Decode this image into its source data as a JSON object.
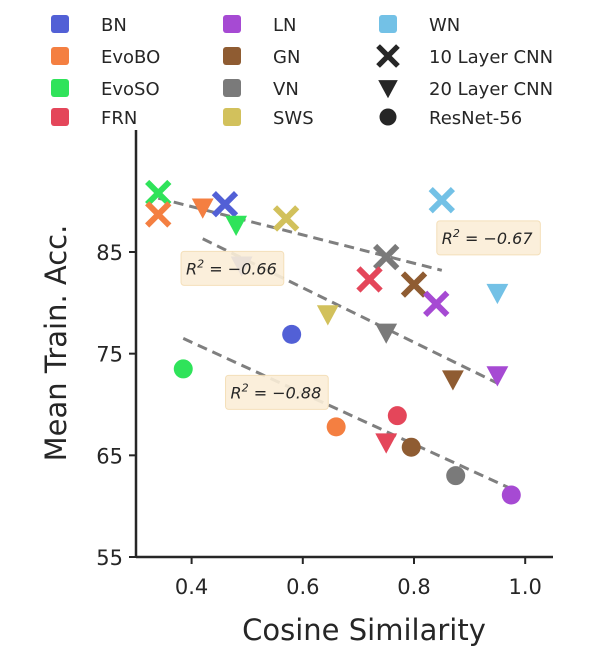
{
  "chart_data": {
    "type": "scatter",
    "xlabel": "Cosine Similarity",
    "ylabel": "Mean Train. Acc.",
    "xlim": [
      0.3,
      1.05
    ],
    "ylim": [
      55,
      97
    ],
    "xticks": [
      0.4,
      0.6,
      0.8,
      1.0
    ],
    "xtick_labels": [
      "0.4",
      "0.6",
      "0.8",
      "1.0"
    ],
    "yticks": [
      55,
      65,
      75,
      85
    ],
    "ytick_labels": [
      "55",
      "65",
      "75",
      "85"
    ],
    "grid": false,
    "legend_position": "top",
    "methods": [
      {
        "name": "BN",
        "color": "#5260d6"
      },
      {
        "name": "EvoBO",
        "color": "#f47f41"
      },
      {
        "name": "EvoSO",
        "color": "#2fe35a"
      },
      {
        "name": "FRN",
        "color": "#e4465a"
      },
      {
        "name": "LN",
        "color": "#a64ad3"
      },
      {
        "name": "GN",
        "color": "#8f5c32"
      },
      {
        "name": "VN",
        "color": "#7a7a7a"
      },
      {
        "name": "SWS",
        "color": "#d2c15c"
      },
      {
        "name": "WN",
        "color": "#73c1e6"
      }
    ],
    "architectures": [
      {
        "name": "10 Layer CNN",
        "marker": "x-marker"
      },
      {
        "name": "20 Layer CNN",
        "marker": "triangle-down"
      },
      {
        "name": "ResNet-56",
        "marker": "circle"
      }
    ],
    "points": [
      {
        "arch": "10 Layer CNN",
        "method": "EvoSO",
        "x": 0.34,
        "y": 90.8
      },
      {
        "arch": "10 Layer CNN",
        "method": "EvoBO",
        "x": 0.34,
        "y": 88.7
      },
      {
        "arch": "10 Layer CNN",
        "method": "BN",
        "x": 0.46,
        "y": 89.7
      },
      {
        "arch": "10 Layer CNN",
        "method": "SWS",
        "x": 0.57,
        "y": 88.3
      },
      {
        "arch": "10 Layer CNN",
        "method": "WN",
        "x": 0.85,
        "y": 90.1
      },
      {
        "arch": "10 Layer CNN",
        "method": "VN",
        "x": 0.75,
        "y": 84.5
      },
      {
        "arch": "10 Layer CNN",
        "method": "FRN",
        "x": 0.72,
        "y": 82.3
      },
      {
        "arch": "10 Layer CNN",
        "method": "GN",
        "x": 0.8,
        "y": 81.8
      },
      {
        "arch": "10 Layer CNN",
        "method": "LN",
        "x": 0.84,
        "y": 79.9
      },
      {
        "arch": "20 Layer CNN",
        "method": "EvoBO",
        "x": 0.42,
        "y": 89.4
      },
      {
        "arch": "20 Layer CNN",
        "method": "EvoSO",
        "x": 0.48,
        "y": 87.7
      },
      {
        "arch": "20 Layer CNN",
        "method": "BN",
        "x": 0.49,
        "y": 83.7
      },
      {
        "arch": "20 Layer CNN",
        "method": "SWS",
        "x": 0.645,
        "y": 78.9
      },
      {
        "arch": "20 Layer CNN",
        "method": "VN",
        "x": 0.75,
        "y": 77.1
      },
      {
        "arch": "20 Layer CNN",
        "method": "WN",
        "x": 0.95,
        "y": 81.0
      },
      {
        "arch": "20 Layer CNN",
        "method": "LN",
        "x": 0.95,
        "y": 72.9
      },
      {
        "arch": "20 Layer CNN",
        "method": "GN",
        "x": 0.87,
        "y": 72.5
      },
      {
        "arch": "20 Layer CNN",
        "method": "FRN",
        "x": 0.75,
        "y": 66.3
      },
      {
        "arch": "ResNet-56",
        "method": "EvoSO",
        "x": 0.385,
        "y": 73.5
      },
      {
        "arch": "ResNet-56",
        "method": "BN",
        "x": 0.58,
        "y": 76.9
      },
      {
        "arch": "ResNet-56",
        "method": "EvoBO",
        "x": 0.66,
        "y": 67.8
      },
      {
        "arch": "ResNet-56",
        "method": "FRN",
        "x": 0.77,
        "y": 68.9
      },
      {
        "arch": "ResNet-56",
        "method": "GN",
        "x": 0.795,
        "y": 65.8
      },
      {
        "arch": "ResNet-56",
        "method": "VN",
        "x": 0.875,
        "y": 63.0
      },
      {
        "arch": "ResNet-56",
        "method": "LN",
        "x": 0.975,
        "y": 61.1
      }
    ],
    "trend_lines": [
      {
        "arch": "10 Layer CNN",
        "x": [
          0.34,
          0.85
        ],
        "y": [
          90.3,
          83.2
        ],
        "annotation": "R^2 = −0.67",
        "ann_x": 0.85,
        "ann_y": 85.8
      },
      {
        "arch": "20 Layer CNN",
        "x": [
          0.42,
          0.95
        ],
        "y": [
          86.3,
          72.1
        ],
        "annotation": "R^2 = −0.66",
        "ann_x": 0.39,
        "ann_y": 82.8
      },
      {
        "arch": "ResNet-56",
        "x": [
          0.385,
          0.975
        ],
        "y": [
          76.5,
          61.7
        ],
        "annotation": "R^2 = −0.88",
        "ann_x": 0.47,
        "ann_y": 70.6
      }
    ]
  }
}
